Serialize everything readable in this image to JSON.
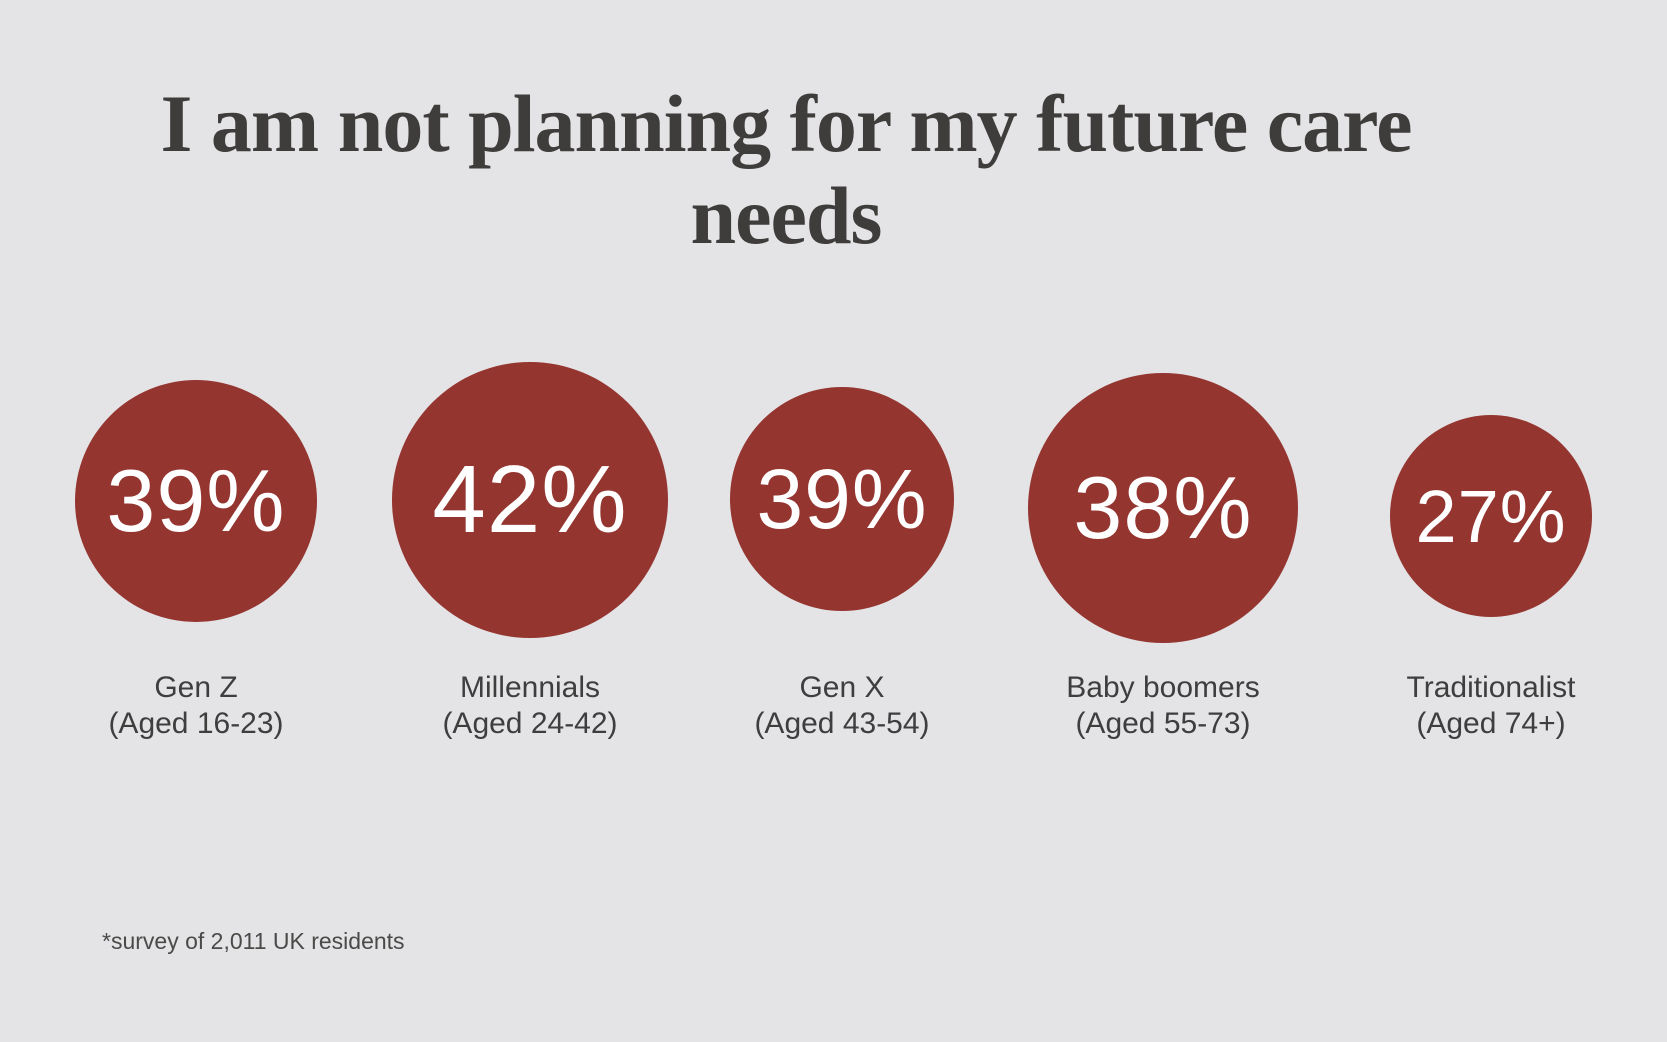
{
  "title": "I am not planning for my future care needs",
  "footnote": "*survey of 2,011 UK residents",
  "colors": {
    "background": "#e4e3e5",
    "bubble": "#943530",
    "title_text": "#3e3d3b",
    "label_text": "#3e3e3e",
    "value_text": "#ffffff"
  },
  "chart_data": {
    "type": "bubble",
    "title": "I am not planning for my future care needs",
    "categories": [
      "Gen Z",
      "Millennials",
      "Gen X",
      "Baby boomers",
      "Traditionalist"
    ],
    "subcategories": [
      "(Aged 16-23)",
      "(Aged 24-42)",
      "(Aged 43-54)",
      "(Aged 55-73)",
      "(Aged 74+)"
    ],
    "values": [
      39,
      42,
      39,
      38,
      27
    ],
    "unit": "%",
    "legend": "none",
    "layout": "five proportional circles in a horizontal row, value inside circle, category label below",
    "note": "*survey of 2,011 UK residents"
  },
  "bubbles": [
    {
      "value_label": "39%",
      "name": "Gen Z",
      "age": "(Aged 16-23)"
    },
    {
      "value_label": "42%",
      "name": "Millennials",
      "age": "(Aged 24-42)"
    },
    {
      "value_label": "39%",
      "name": "Gen X",
      "age": "(Aged 43-54)"
    },
    {
      "value_label": "38%",
      "name": "Baby boomers",
      "age": "(Aged 55-73)"
    },
    {
      "value_label": "27%",
      "name": "Traditionalist",
      "age": "(Aged 74+)"
    }
  ]
}
